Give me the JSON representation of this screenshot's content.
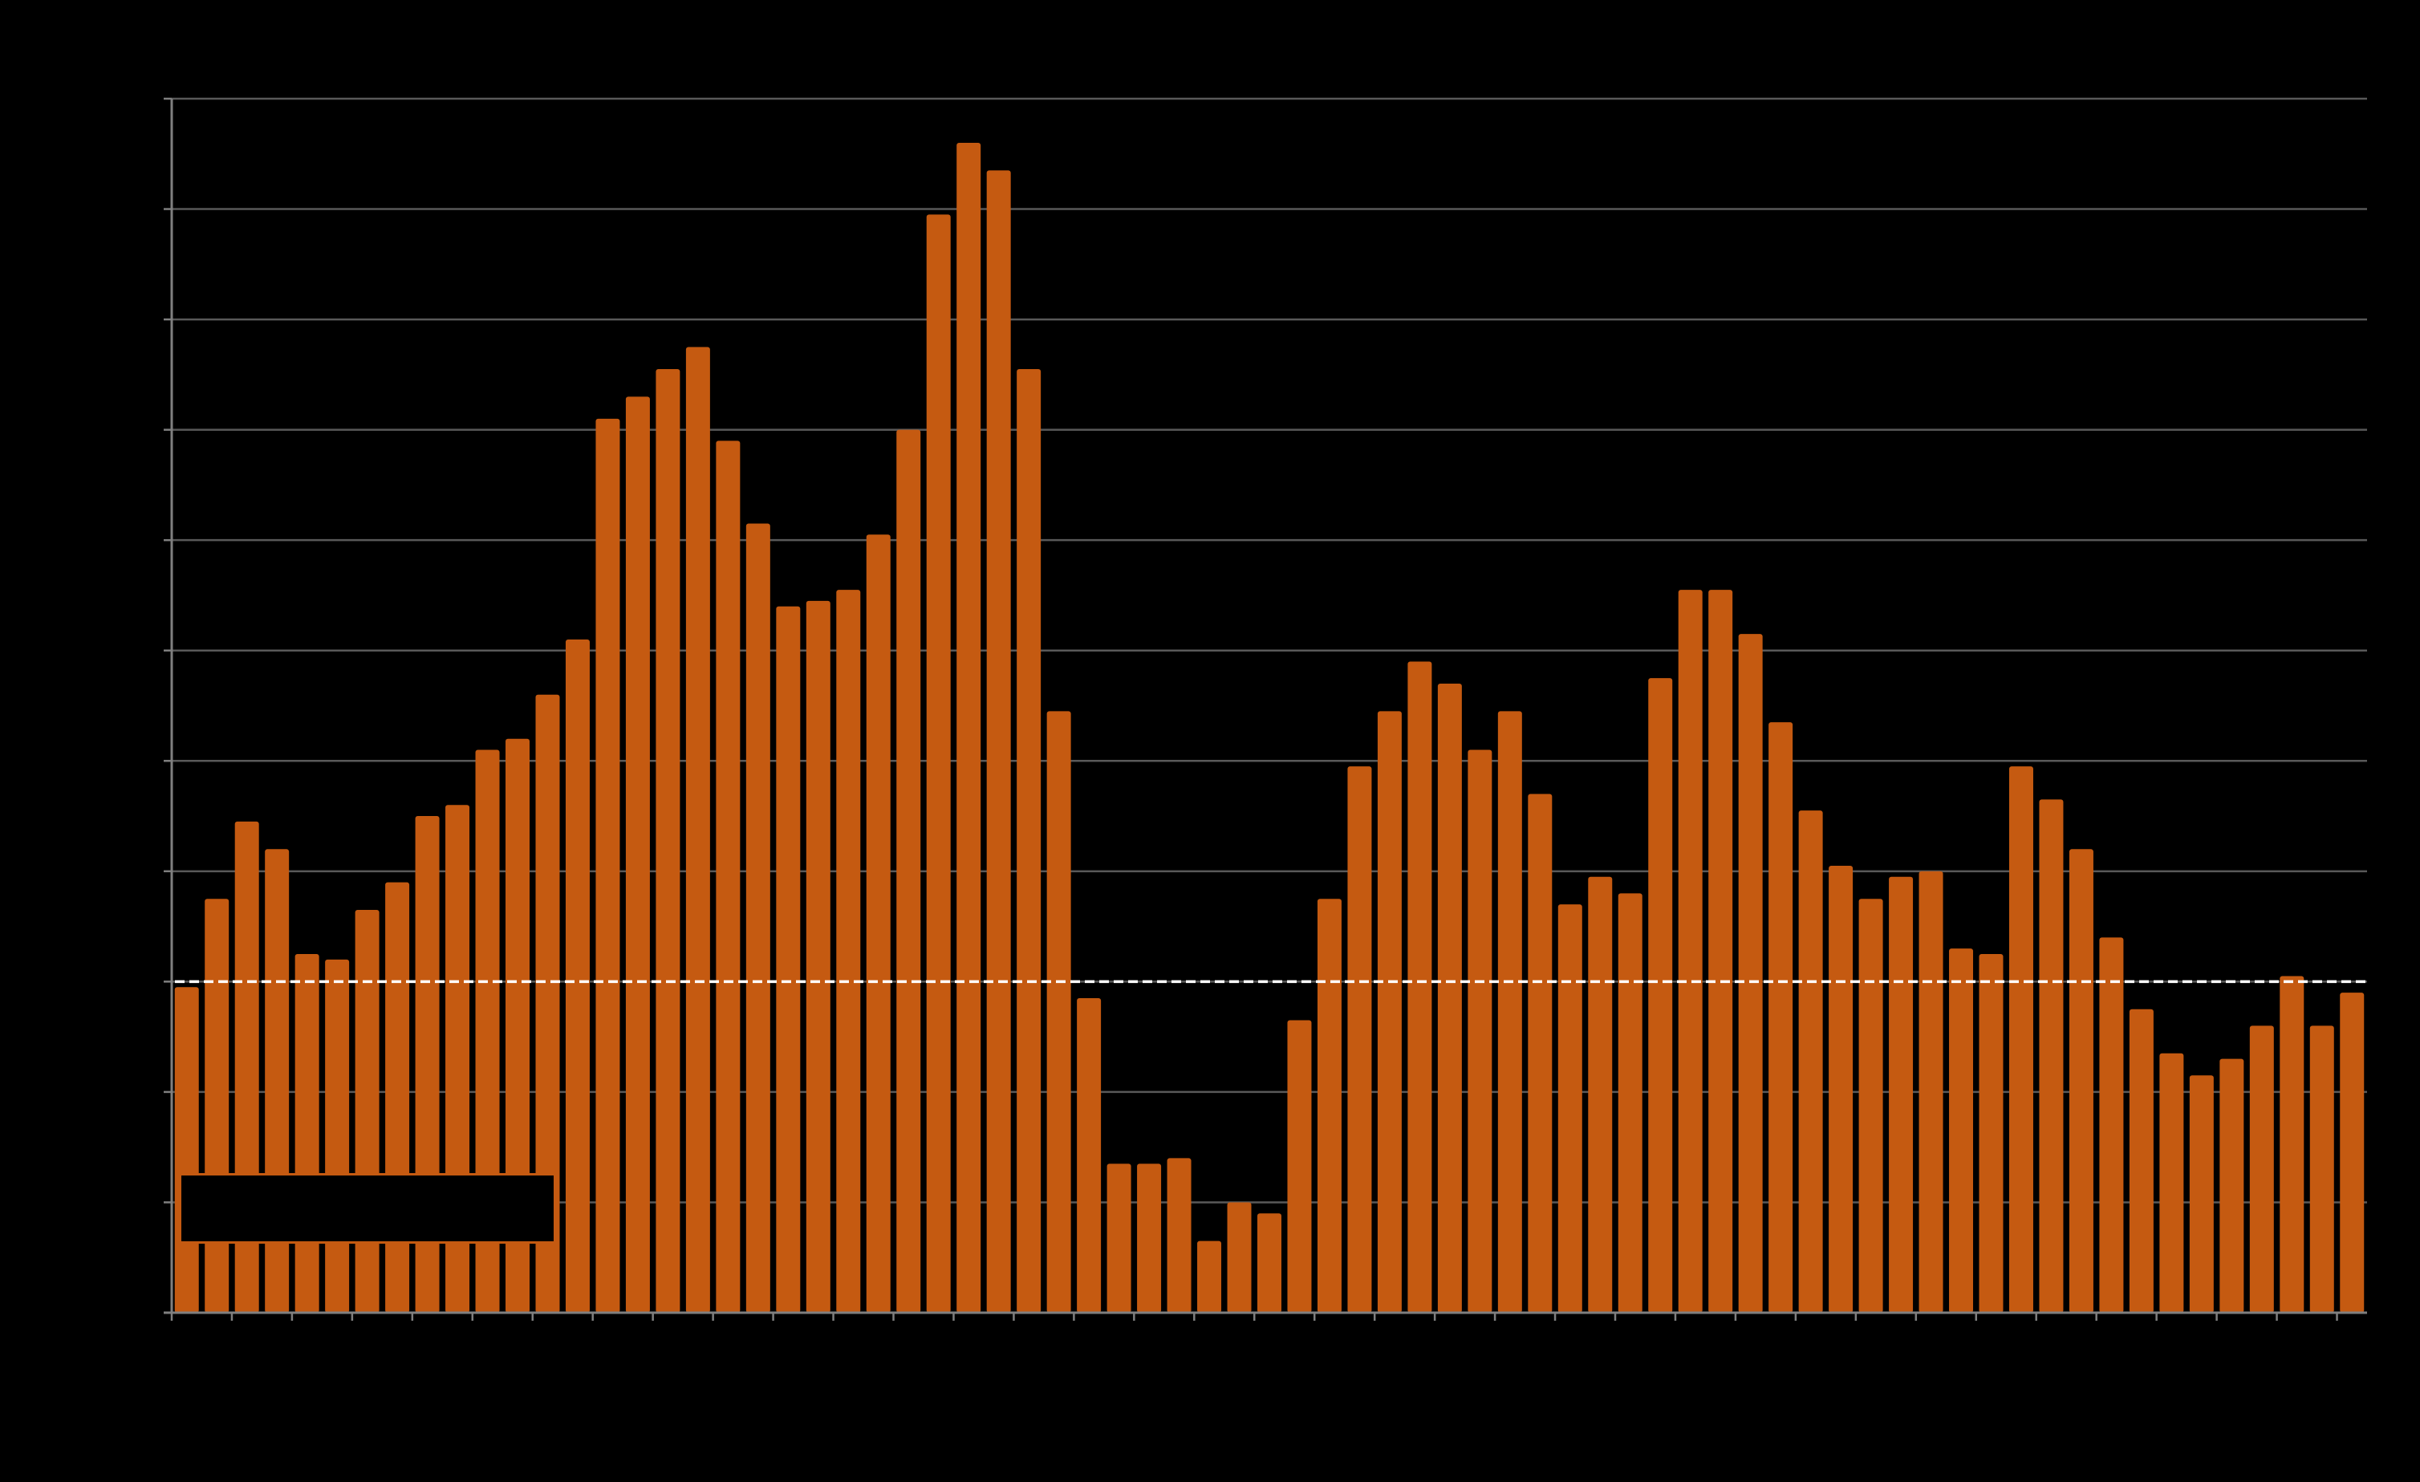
{
  "chart_data": {
    "type": "bar",
    "title": "",
    "xlabel": "",
    "ylabel": "",
    "ylim": [
      0,
      110
    ],
    "y_gridlines": [
      10,
      20,
      30,
      40,
      50,
      60,
      70,
      80,
      90,
      100,
      110
    ],
    "reference_line": 30,
    "grid": true,
    "legend": "bottom-left",
    "colors": {
      "background": "#000000",
      "bar": "#C55A11",
      "gridline": "#595959",
      "axis": "#7F7F7F",
      "reference_line": "#FFFFFF"
    },
    "series": [
      {
        "values": [
          29.5,
          37.5,
          44.5,
          42,
          32.5,
          32,
          36.5,
          39,
          45,
          46,
          51,
          52,
          56,
          61,
          81,
          83,
          85.5,
          87.5,
          79,
          71.5,
          64,
          64.5,
          65.5,
          70.5,
          80,
          99.5,
          106,
          103.5,
          85.5,
          54.5,
          28.5,
          13.5,
          13.5,
          14,
          6.5,
          10,
          9,
          26.5,
          37.5,
          49.5,
          54.5,
          59,
          57,
          51,
          54.5,
          47,
          37,
          39.5,
          38,
          57.5,
          65.5,
          65.5,
          61.5,
          53.5,
          45.5,
          40.5,
          37.5,
          39.5,
          40,
          33,
          32.5,
          49.5,
          46.5,
          42,
          34,
          27.5,
          23.5,
          21.5,
          23,
          26,
          30.5,
          26,
          29
        ]
      }
    ]
  }
}
